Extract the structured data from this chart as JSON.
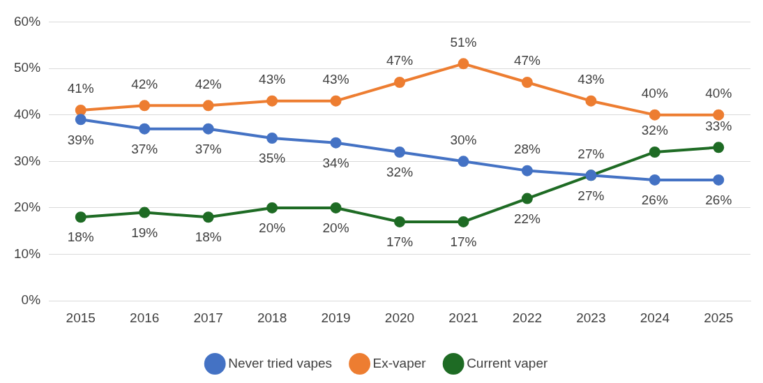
{
  "chart_data": {
    "type": "line",
    "categories": [
      "2015",
      "2016",
      "2017",
      "2018",
      "2019",
      "2020",
      "2021",
      "2022",
      "2023",
      "2024",
      "2025"
    ],
    "series": [
      {
        "name": "Never tried vapes",
        "color": "#4472c4",
        "values": [
          39,
          37,
          37,
          35,
          34,
          32,
          30,
          28,
          27,
          26,
          26
        ],
        "value_labels": [
          "39%",
          "37%",
          "37%",
          "35%",
          "34%",
          "32%",
          "30%",
          "28%",
          "27%",
          "26%",
          "26%"
        ]
      },
      {
        "name": "Ex-vaper",
        "color": "#ed7d31",
        "values": [
          41,
          42,
          42,
          43,
          43,
          47,
          51,
          47,
          43,
          40,
          40
        ],
        "value_labels": [
          "41%",
          "42%",
          "42%",
          "43%",
          "43%",
          "47%",
          "51%",
          "47%",
          "43%",
          "40%",
          "40%"
        ]
      },
      {
        "name": "Current vaper",
        "color": "#1e6b24",
        "values": [
          18,
          19,
          18,
          20,
          20,
          17,
          17,
          22,
          27,
          32,
          33
        ],
        "value_labels": [
          "18%",
          "19%",
          "18%",
          "20%",
          "20%",
          "17%",
          "17%",
          "22%",
          "27%",
          "32%",
          "33%"
        ]
      }
    ],
    "ylim": [
      0,
      60
    ],
    "yticks": [
      {
        "value": 0,
        "label": "0%"
      },
      {
        "value": 10,
        "label": "10%"
      },
      {
        "value": 20,
        "label": "20%"
      },
      {
        "value": 30,
        "label": "30%"
      },
      {
        "value": 40,
        "label": "40%"
      },
      {
        "value": 50,
        "label": "50%"
      },
      {
        "value": 60,
        "label": "60%"
      }
    ],
    "grid": "y",
    "legend": "bottom",
    "marker": "circle",
    "line_style": "solid"
  }
}
